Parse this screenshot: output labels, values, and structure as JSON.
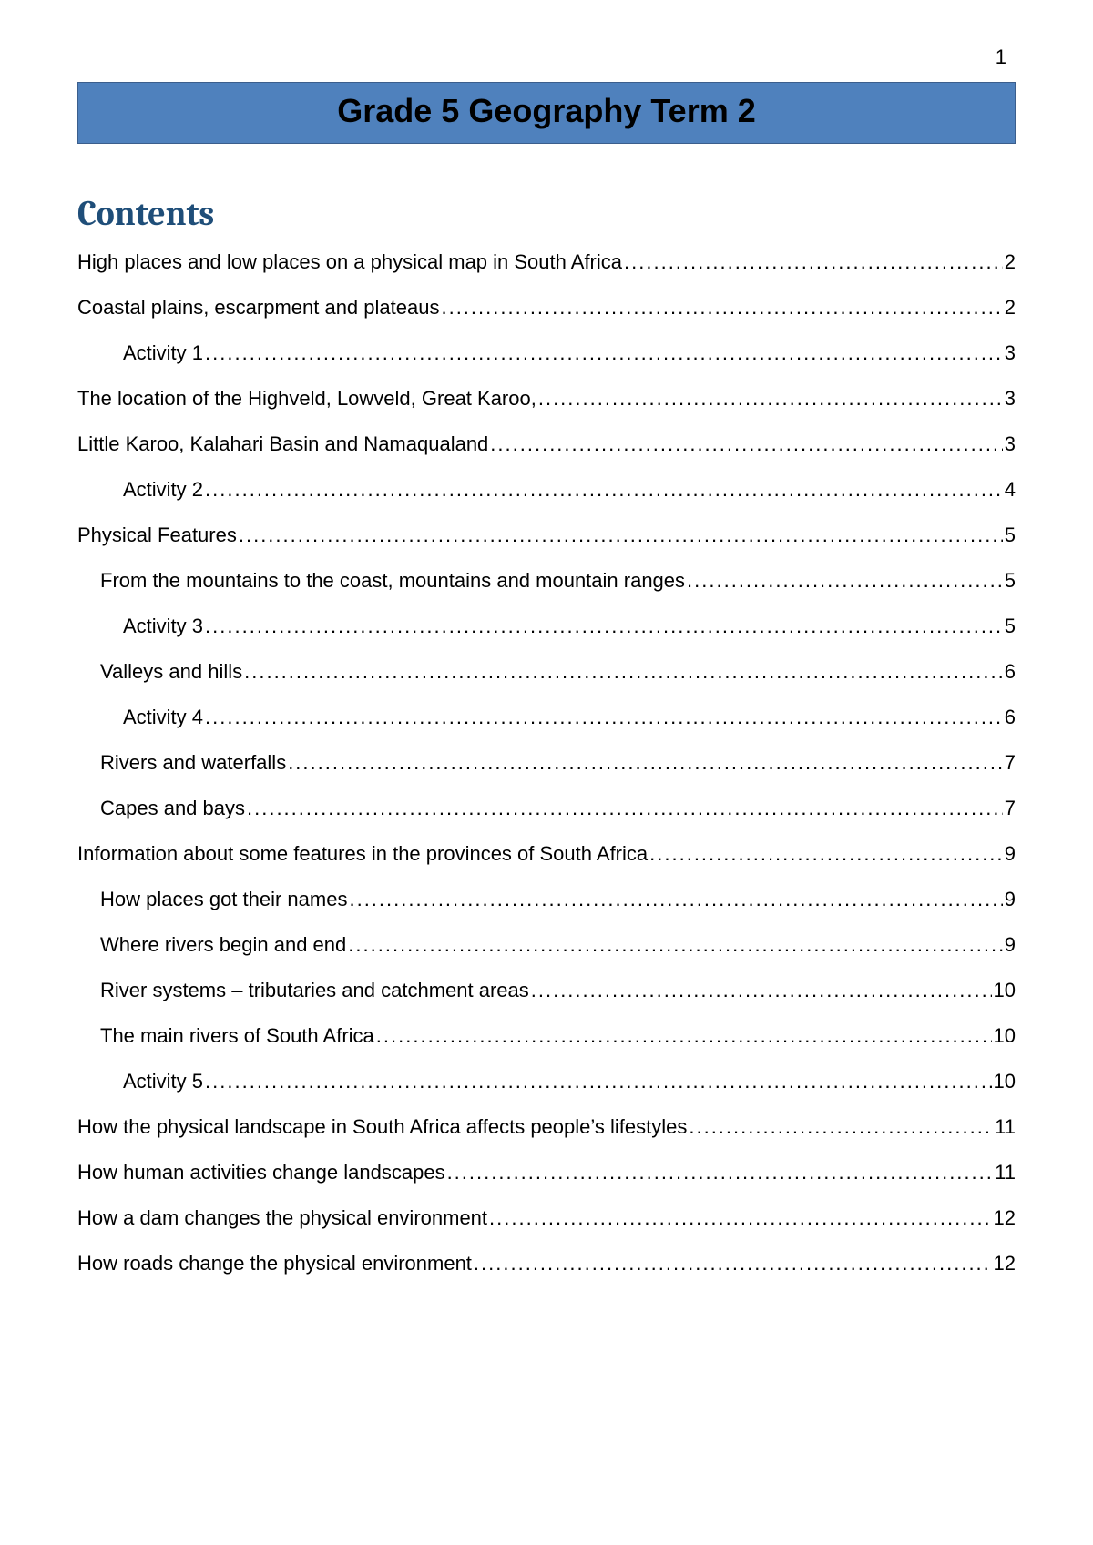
{
  "pageNumber": "1",
  "titleBanner": "Grade 5 Geography Term 2",
  "contentsHeading": "Contents",
  "colors": {
    "bannerBackground": "#4f81bd",
    "bannerBorder": "#3b5e8c",
    "contentsHeading": "#1f4e79",
    "text": "#000000",
    "pageBackground": "#ffffff"
  },
  "toc": [
    {
      "label": "High places and low places on a physical map in South Africa",
      "page": "2",
      "level": 0
    },
    {
      "label": "Coastal plains, escarpment and plateaus",
      "page": "2",
      "level": 0
    },
    {
      "label": "Activity 1",
      "page": "3",
      "level": 2
    },
    {
      "label": "The location of the Highveld, Lowveld, Great Karoo,",
      "page": "3",
      "level": 0
    },
    {
      "label": "Little Karoo, Kalahari Basin and Namaqualand",
      "page": "3",
      "level": 0
    },
    {
      "label": "Activity 2",
      "page": "4",
      "level": 2
    },
    {
      "label": "Physical Features",
      "page": "5",
      "level": 0
    },
    {
      "label": "From the mountains to the coast, mountains and mountain ranges",
      "page": "5",
      "level": 1
    },
    {
      "label": "Activity 3",
      "page": "5",
      "level": 2
    },
    {
      "label": "Valleys and hills",
      "page": "6",
      "level": 1
    },
    {
      "label": "Activity 4",
      "page": "6",
      "level": 2
    },
    {
      "label": "Rivers and waterfalls",
      "page": "7",
      "level": 1
    },
    {
      "label": "Capes and bays",
      "page": "7",
      "level": 1
    },
    {
      "label": "Information about some features in the provinces of South Africa",
      "page": "9",
      "level": 0
    },
    {
      "label": "How places got their names",
      "page": "9",
      "level": 1
    },
    {
      "label": "Where rivers begin and end",
      "page": "9",
      "level": 1
    },
    {
      "label": "River systems – tributaries and catchment areas",
      "page": "10",
      "level": 1
    },
    {
      "label": "The main rivers of South Africa",
      "page": "10",
      "level": 1
    },
    {
      "label": "Activity 5",
      "page": "10",
      "level": 2
    },
    {
      "label": "How the physical landscape in South Africa affects people’s lifestyles",
      "page": "11",
      "level": 0
    },
    {
      "label": "How human activities change landscapes",
      "page": "11",
      "level": 0
    },
    {
      "label": "How a dam changes the physical environment",
      "page": "12",
      "level": 0
    },
    {
      "label": "How roads change the physical environment",
      "page": "12",
      "level": 0
    }
  ]
}
